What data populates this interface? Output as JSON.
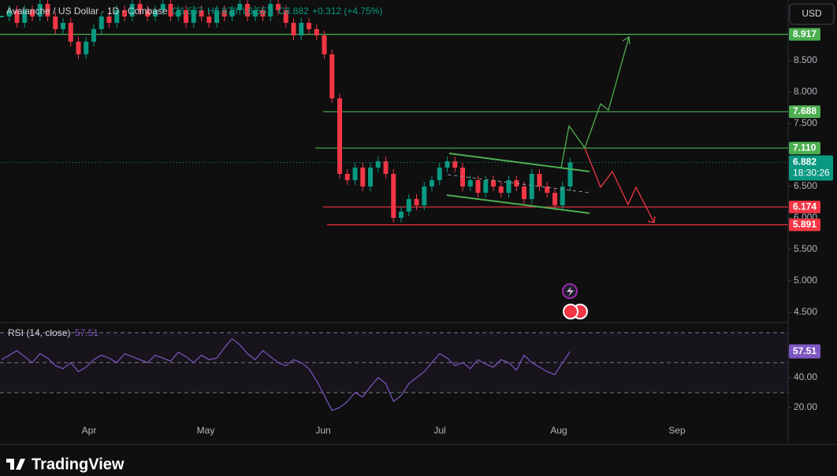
{
  "chart_data": {
    "type": "candlestick",
    "title": "Avalanche / US Dollar · 1D · Coinbase",
    "ohlc": [
      "O6.567",
      "H6.978",
      "L6.557",
      "C6.882"
    ],
    "change": "+0.312 (+4.75%)",
    "currency": "USD",
    "brand": "TradingView",
    "up_color": "#089981",
    "down_color": "#f23645",
    "closes": [
      9.2,
      9.3,
      9.1,
      9.3,
      9.2,
      9.4,
      9.2,
      9.0,
      9.1,
      8.8,
      8.6,
      8.8,
      9.0,
      9.2,
      9.1,
      9.3,
      9.2,
      9.4,
      9.3,
      9.2,
      9.3,
      9.4,
      9.2,
      9.3,
      9.1,
      9.3,
      9.2,
      9.1,
      9.3,
      9.2,
      9.3,
      9.4,
      9.2,
      9.3,
      9.2,
      9.4,
      9.3,
      9.1,
      8.9,
      9.1,
      9.0,
      8.9,
      8.6,
      7.9,
      6.7,
      6.6,
      6.8,
      6.5,
      6.8,
      6.9,
      6.7,
      6.0,
      6.1,
      6.3,
      6.2,
      6.5,
      6.6,
      6.8,
      6.9,
      6.8,
      6.5,
      6.6,
      6.4,
      6.6,
      6.5,
      6.4,
      6.6,
      6.5,
      6.3,
      6.7,
      6.5,
      6.4,
      6.2,
      6.5,
      6.882
    ],
    "ylim": [
      4.3375,
      9.4625
    ],
    "yticks": [
      {
        "value": 8.5,
        "label": "8.500"
      },
      {
        "value": 8,
        "label": "8.000"
      },
      {
        "value": 7.5,
        "label": "7.500"
      },
      {
        "value": 6.5,
        "label": "6.500"
      },
      {
        "value": 6,
        "label": "6.000"
      },
      {
        "value": 5.5,
        "label": "5.500"
      },
      {
        "value": 5,
        "label": "5.000"
      },
      {
        "value": 4.5,
        "label": "4.500"
      }
    ],
    "levels": [
      {
        "value": 8.917,
        "label": "8.917",
        "color": "#4caf50"
      },
      {
        "value": 7.688,
        "label": "7.688",
        "color": "#4caf50"
      },
      {
        "value": 7.11,
        "label": "7.110",
        "color": "#4caf50"
      },
      {
        "value": 6.174,
        "label": "6.174",
        "color": "#f23645"
      },
      {
        "value": 5.891,
        "label": "5.891",
        "color": "#f23645"
      }
    ],
    "last_price": {
      "value": 6.882,
      "label": "6.882",
      "countdown": "18:30:26",
      "color": "#089981"
    },
    "categories": [
      "Apr",
      "May",
      "Jun",
      "Jul",
      "Aug",
      "Sep"
    ],
    "rsi": {
      "name": "RSI (14, close)",
      "color": "#7e57c2",
      "values": [
        52,
        55,
        58,
        54,
        50,
        56,
        53,
        48,
        46,
        50,
        44,
        47,
        52,
        55,
        53,
        50,
        56,
        54,
        52,
        50,
        55,
        53,
        51,
        57,
        54,
        50,
        55,
        52,
        53,
        60,
        66,
        62,
        56,
        52,
        58,
        54,
        50,
        48,
        52,
        50,
        46,
        38,
        28,
        18,
        20,
        24,
        30,
        27,
        34,
        40,
        36,
        24,
        28,
        36,
        40,
        44,
        50,
        56,
        53,
        48,
        50,
        46,
        52,
        49,
        47,
        52,
        50,
        45,
        55,
        50,
        47,
        44,
        42,
        50,
        57.51
      ],
      "ylim": [
        8.4,
        76.8
      ],
      "yticks": [
        {
          "value": 40,
          "label": "40.00"
        },
        {
          "value": 20,
          "label": "20.00"
        }
      ],
      "bands": [
        70,
        50,
        30
      ]
    }
  }
}
